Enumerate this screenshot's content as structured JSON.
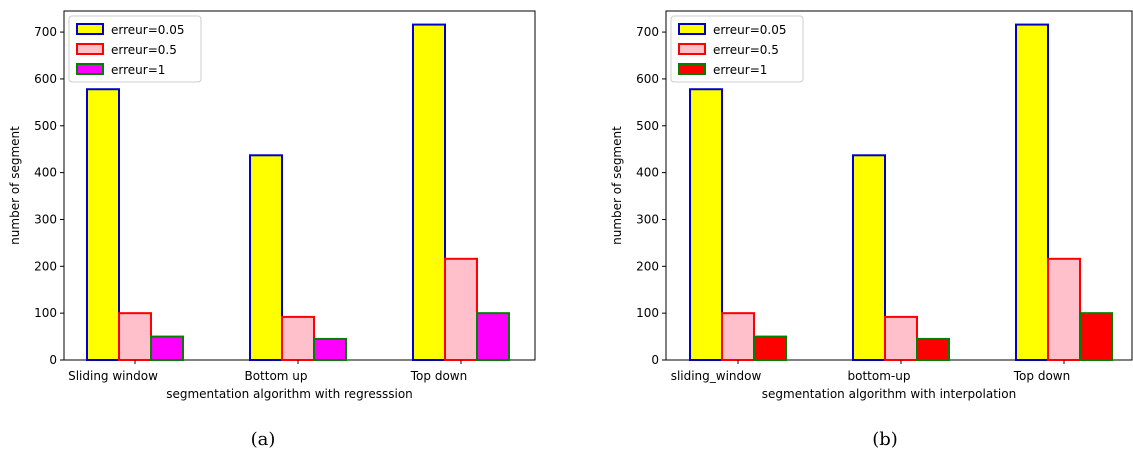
{
  "chart_data": [
    {
      "type": "bar",
      "panel_label": "(a)",
      "xlabel": "segmentation algorithm with regresssion",
      "ylabel": "number of segment",
      "categories": [
        "Sliding window",
        "Bottom up",
        "Top down"
      ],
      "ylim": [
        0,
        745
      ],
      "yticks": [
        0,
        100,
        200,
        300,
        400,
        500,
        600,
        700
      ],
      "grid": false,
      "legend_position": "top-left",
      "series": [
        {
          "name": "erreur=0.05",
          "values": [
            578,
            437,
            716
          ],
          "fill": "#ffff00",
          "edge": "#0000cc"
        },
        {
          "name": "erreur=0.5",
          "values": [
            100,
            92,
            216
          ],
          "fill": "#ffc0cb",
          "edge": "#ff0000"
        },
        {
          "name": "erreur=1",
          "values": [
            50,
            45,
            100
          ],
          "fill": "#ff00ff",
          "edge": "#008000"
        }
      ]
    },
    {
      "type": "bar",
      "panel_label": "(b)",
      "xlabel": "segmentation algorithm with interpolation",
      "ylabel": "number of segment",
      "categories": [
        "sliding_window",
        "bottom-up",
        "Top down"
      ],
      "ylim": [
        0,
        745
      ],
      "yticks": [
        0,
        100,
        200,
        300,
        400,
        500,
        600,
        700
      ],
      "grid": false,
      "legend_position": "top-left",
      "series": [
        {
          "name": "erreur=0.05",
          "values": [
            578,
            437,
            716
          ],
          "fill": "#ffff00",
          "edge": "#0000cc"
        },
        {
          "name": "erreur=0.5",
          "values": [
            100,
            92,
            216
          ],
          "fill": "#ffc0cb",
          "edge": "#ff0000"
        },
        {
          "name": "erreur=1",
          "values": [
            50,
            45,
            100
          ],
          "fill": "#ff0000",
          "edge": "#008000"
        }
      ]
    }
  ]
}
